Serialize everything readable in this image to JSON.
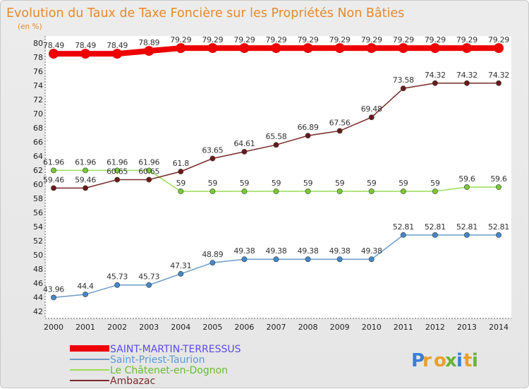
{
  "chart_data": {
    "type": "line",
    "title": "Evolution du Taux de Taxe Foncière sur les Propriétés Non Bâties",
    "ylabel": "(en %)",
    "xlabel": "",
    "ylim": [
      42,
      80
    ],
    "ytick_step": 2,
    "grid": false,
    "legend_position": "bottom-left",
    "x": [
      "2000",
      "2001",
      "2002",
      "2003",
      "2004",
      "2005",
      "2006",
      "2007",
      "2008",
      "2009",
      "2010",
      "2011",
      "2012",
      "2013",
      "2014"
    ],
    "series": [
      {
        "name": "SAINT-MARTIN-TERRESSUS",
        "color": "#ee0000",
        "legend_color": "#5a4ae8",
        "bold": true,
        "values": [
          78.49,
          78.49,
          78.49,
          78.89,
          79.29,
          79.29,
          79.29,
          79.29,
          79.29,
          79.29,
          79.29,
          79.29,
          79.29,
          79.29,
          79.29
        ],
        "labels": [
          "78.49",
          "78.49",
          "78.49",
          "78.89",
          "79.29",
          "79.29",
          "79.29",
          "79.29",
          "79.29",
          "79.29",
          "79.29",
          "79.29",
          "79.29",
          "79.29",
          "79.29"
        ]
      },
      {
        "name": "Saint-Priest-Taurion",
        "color": "#6b9cc9",
        "marker": "#4488cc",
        "legend_color": "#5a9ad6",
        "values": [
          43.96,
          44.4,
          45.73,
          45.73,
          47.31,
          48.89,
          49.38,
          49.38,
          49.38,
          49.38,
          49.38,
          52.81,
          52.81,
          52.81,
          52.81
        ],
        "labels": [
          "43.96",
          "44.4",
          "45.73",
          "45.73",
          "47.31",
          "48.89",
          "49.38",
          "49.38",
          "49.38",
          "49.38",
          "49.38",
          "52.81",
          "52.81",
          "52.81",
          "52.81"
        ]
      },
      {
        "name": "Le Châtenet-en-Dognon",
        "color": "#99dd55",
        "marker": "#77cc33",
        "legend_color": "#66bb33",
        "values": [
          61.96,
          61.96,
          61.96,
          61.96,
          59,
          59,
          59,
          59,
          59,
          59,
          59,
          59,
          59,
          59.6,
          59.6
        ],
        "labels": [
          "61.96",
          "61.96",
          "61.96",
          "61.96",
          "59",
          "59",
          "59",
          "59",
          "59",
          "59",
          "59",
          "59",
          "59",
          "59.6",
          "59.6"
        ]
      },
      {
        "name": "Ambazac",
        "color": "#7a2a2a",
        "marker": "#6a1a1a",
        "legend_color": "#7a2a2a",
        "values": [
          59.46,
          59.46,
          60.65,
          60.65,
          61.8,
          63.65,
          64.61,
          65.58,
          66.89,
          67.56,
          69.48,
          73.58,
          74.32,
          74.32,
          74.32
        ],
        "labels": [
          "59.46",
          "59.46",
          "60.65",
          "60.65",
          "61.8",
          "63.65",
          "64.61",
          "65.58",
          "66.89",
          "67.56",
          "69.48",
          "73.58",
          "74.32",
          "74.32",
          "74.32"
        ]
      }
    ]
  },
  "brand": {
    "letters": [
      "P",
      "r",
      "o",
      "x",
      "i",
      "t",
      "i"
    ],
    "colors": [
      "#3a7fd4",
      "#e8a02a",
      "#e8a02a",
      "#6ab33a",
      "#3a7fd4",
      "#e8a02a",
      "#6ab33a"
    ]
  }
}
